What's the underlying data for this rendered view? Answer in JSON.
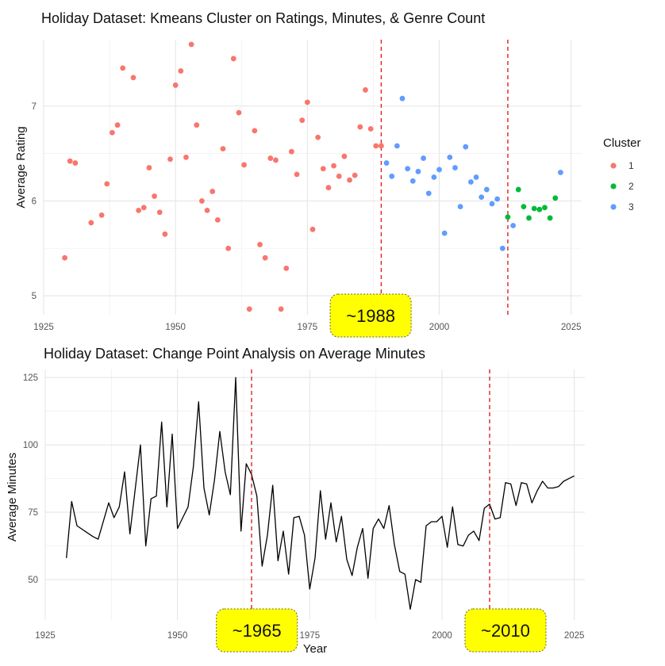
{
  "chart_data": [
    {
      "type": "scatter",
      "title": "Holiday Dataset: Kmeans Cluster on Ratings, Minutes, & Genre Count",
      "xlabel": "",
      "ylabel": "Average Rating",
      "xlim": [
        1925,
        2027
      ],
      "ylim": [
        4.8,
        7.7
      ],
      "xticks": [
        1925,
        1950,
        1975,
        2000,
        2025
      ],
      "yticks": [
        5,
        6,
        7
      ],
      "grid": true,
      "legend": {
        "title": "Cluster",
        "position": "right",
        "items": [
          {
            "label": "1",
            "color": "#F8766D"
          },
          {
            "label": "2",
            "color": "#00BA38"
          },
          {
            "label": "3",
            "color": "#619CFF"
          }
        ]
      },
      "vlines": [
        1989,
        2013
      ],
      "vline_color": "#E02020",
      "callouts": [
        {
          "label": "~1988",
          "x": 1987
        }
      ],
      "series": [
        {
          "name": "1",
          "color": "#F8766D",
          "points": [
            [
              1929,
              5.4
            ],
            [
              1930,
              6.42
            ],
            [
              1931,
              6.4
            ],
            [
              1934,
              5.77
            ],
            [
              1936,
              5.85
            ],
            [
              1937,
              6.18
            ],
            [
              1938,
              6.72
            ],
            [
              1939,
              6.8
            ],
            [
              1940,
              7.4
            ],
            [
              1942,
              7.3
            ],
            [
              1943,
              5.9
            ],
            [
              1944,
              5.93
            ],
            [
              1945,
              6.35
            ],
            [
              1946,
              6.05
            ],
            [
              1947,
              5.88
            ],
            [
              1948,
              5.65
            ],
            [
              1949,
              6.44
            ],
            [
              1950,
              7.22
            ],
            [
              1951,
              7.37
            ],
            [
              1952,
              6.46
            ],
            [
              1953,
              7.65
            ],
            [
              1954,
              6.8
            ],
            [
              1955,
              6.0
            ],
            [
              1956,
              5.9
            ],
            [
              1957,
              6.1
            ],
            [
              1958,
              5.8
            ],
            [
              1959,
              6.55
            ],
            [
              1960,
              5.5
            ],
            [
              1961,
              7.5
            ],
            [
              1962,
              6.93
            ],
            [
              1963,
              6.38
            ],
            [
              1964,
              4.86
            ],
            [
              1965,
              6.74
            ],
            [
              1966,
              5.54
            ],
            [
              1967,
              5.4
            ],
            [
              1968,
              6.45
            ],
            [
              1969,
              6.43
            ],
            [
              1970,
              4.86
            ],
            [
              1971,
              5.29
            ],
            [
              1972,
              6.52
            ],
            [
              1973,
              6.28
            ],
            [
              1974,
              6.85
            ],
            [
              1975,
              7.04
            ],
            [
              1976,
              5.7
            ],
            [
              1977,
              6.67
            ],
            [
              1978,
              6.34
            ],
            [
              1979,
              6.14
            ],
            [
              1980,
              6.37
            ],
            [
              1981,
              6.26
            ],
            [
              1982,
              6.47
            ],
            [
              1983,
              6.22
            ],
            [
              1984,
              6.27
            ],
            [
              1985,
              6.78
            ],
            [
              1986,
              7.17
            ],
            [
              1987,
              6.76
            ],
            [
              1988,
              6.58
            ],
            [
              1989,
              6.58
            ]
          ]
        },
        {
          "name": "2",
          "color": "#00BA38",
          "points": [
            [
              2013,
              5.83
            ],
            [
              2015,
              6.12
            ],
            [
              2016,
              5.94
            ],
            [
              2017,
              5.82
            ],
            [
              2018,
              5.92
            ],
            [
              2019,
              5.91
            ],
            [
              2020,
              5.93
            ],
            [
              2021,
              5.82
            ],
            [
              2022,
              6.03
            ]
          ]
        },
        {
          "name": "3",
          "color": "#619CFF",
          "points": [
            [
              1990,
              6.4
            ],
            [
              1991,
              6.26
            ],
            [
              1992,
              6.58
            ],
            [
              1993,
              7.08
            ],
            [
              1994,
              6.34
            ],
            [
              1995,
              6.21
            ],
            [
              1996,
              6.31
            ],
            [
              1997,
              6.45
            ],
            [
              1998,
              6.08
            ],
            [
              1999,
              6.25
            ],
            [
              2000,
              6.33
            ],
            [
              2001,
              5.66
            ],
            [
              2002,
              6.46
            ],
            [
              2003,
              6.35
            ],
            [
              2004,
              5.94
            ],
            [
              2005,
              6.57
            ],
            [
              2006,
              6.2
            ],
            [
              2007,
              6.25
            ],
            [
              2008,
              6.04
            ],
            [
              2009,
              6.12
            ],
            [
              2010,
              5.97
            ],
            [
              2011,
              6.02
            ],
            [
              2012,
              5.5
            ],
            [
              2014,
              5.74
            ],
            [
              2023,
              6.3
            ]
          ]
        }
      ]
    },
    {
      "type": "line",
      "title": "Holiday Dataset: Change Point Analysis on Average Minutes",
      "xlabel": "Year",
      "ylabel": "Average Minutes",
      "xlim": [
        1925,
        2027
      ],
      "ylim": [
        35,
        128
      ],
      "xticks": [
        1925,
        1950,
        1975,
        2000,
        2025
      ],
      "yticks": [
        50,
        75,
        100,
        125
      ],
      "grid": true,
      "vlines": [
        1964,
        2009
      ],
      "vline_color": "#E02020",
      "callouts": [
        {
          "label": "~1965",
          "x": 1965
        },
        {
          "label": "~2010",
          "x": 2012
        }
      ],
      "series": [
        {
          "name": "",
          "color": "#000000",
          "points": [
            [
              1929,
              58
            ],
            [
              1930,
              79
            ],
            [
              1931,
              70
            ],
            [
              1934,
              66
            ],
            [
              1935,
              65
            ],
            [
              1937,
              78.5
            ],
            [
              1938,
              73
            ],
            [
              1939,
              77
            ],
            [
              1940,
              90
            ],
            [
              1941,
              67
            ],
            [
              1943,
              100
            ],
            [
              1944,
              62.5
            ],
            [
              1945,
              80
            ],
            [
              1946,
              81
            ],
            [
              1947,
              108.5
            ],
            [
              1948,
              77
            ],
            [
              1949,
              104
            ],
            [
              1950,
              69
            ],
            [
              1951,
              73
            ],
            [
              1952,
              77
            ],
            [
              1953,
              92
            ],
            [
              1954,
              116
            ],
            [
              1955,
              84
            ],
            [
              1956,
              74
            ],
            [
              1957,
              87
            ],
            [
              1958,
              105
            ],
            [
              1959,
              90
            ],
            [
              1960,
              81.5
            ],
            [
              1961,
              125
            ],
            [
              1962,
              68
            ],
            [
              1963,
              93
            ],
            [
              1964,
              89
            ],
            [
              1965,
              81
            ],
            [
              1966,
              55
            ],
            [
              1967,
              66.5
            ],
            [
              1968,
              85
            ],
            [
              1969,
              57
            ],
            [
              1970,
              68
            ],
            [
              1971,
              52
            ],
            [
              1972,
              73
            ],
            [
              1973,
              73.5
            ],
            [
              1974,
              66.5
            ],
            [
              1975,
              46.5
            ],
            [
              1976,
              58
            ],
            [
              1977,
              83
            ],
            [
              1978,
              65
            ],
            [
              1979,
              78.5
            ],
            [
              1980,
              64
            ],
            [
              1981,
              73.5
            ],
            [
              1982,
              57.5
            ],
            [
              1983,
              51.5
            ],
            [
              1984,
              62
            ],
            [
              1985,
              69
            ],
            [
              1986,
              50.5
            ],
            [
              1987,
              69
            ],
            [
              1988,
              72.5
            ],
            [
              1989,
              69
            ],
            [
              1990,
              77.5
            ],
            [
              1991,
              63
            ],
            [
              1992,
              53
            ],
            [
              1993,
              52
            ],
            [
              1994,
              39
            ],
            [
              1995,
              50
            ],
            [
              1996,
              49
            ],
            [
              1997,
              70
            ],
            [
              1998,
              71.5
            ],
            [
              1999,
              71.5
            ],
            [
              2000,
              73.5
            ],
            [
              2001,
              62
            ],
            [
              2002,
              77
            ],
            [
              2003,
              63
            ],
            [
              2004,
              62.5
            ],
            [
              2005,
              66.5
            ],
            [
              2006,
              68
            ],
            [
              2007,
              64.5
            ],
            [
              2008,
              76.5
            ],
            [
              2009,
              78
            ],
            [
              2010,
              72.5
            ],
            [
              2011,
              73
            ],
            [
              2012,
              86
            ],
            [
              2013,
              85.5
            ],
            [
              2014,
              77.5
            ],
            [
              2015,
              86
            ],
            [
              2016,
              85.5
            ],
            [
              2017,
              78.5
            ],
            [
              2018,
              83
            ],
            [
              2019,
              86.5
            ],
            [
              2020,
              84
            ],
            [
              2021,
              84
            ],
            [
              2022,
              84.5
            ],
            [
              2023,
              86.5
            ],
            [
              2024,
              87.5
            ],
            [
              2025,
              88.5
            ]
          ]
        }
      ]
    }
  ]
}
